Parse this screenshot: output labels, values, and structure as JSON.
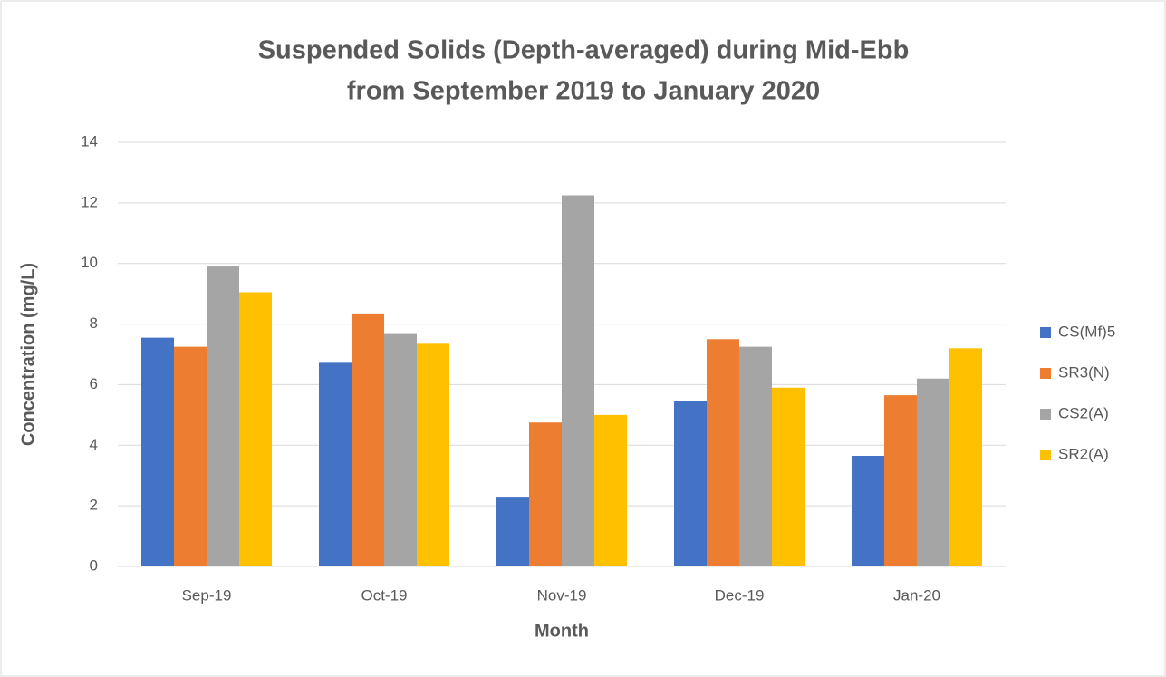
{
  "chart_data": {
    "type": "bar",
    "title": [
      "Suspended Solids (Depth-averaged) during Mid-Ebb",
      "from September 2019 to January 2020"
    ],
    "xlabel": "Month",
    "ylabel": "Concentration (mg/L)",
    "categories": [
      "Sep-19",
      "Oct-19",
      "Nov-19",
      "Dec-19",
      "Jan-20"
    ],
    "series": [
      {
        "name": "CS(Mf)5",
        "color": "#4472c4",
        "values": [
          7.55,
          6.75,
          2.3,
          5.45,
          3.65
        ]
      },
      {
        "name": "SR3(N)",
        "color": "#ed7d31",
        "values": [
          7.25,
          8.35,
          4.75,
          7.5,
          5.65
        ]
      },
      {
        "name": "CS2(A)",
        "color": "#a5a5a5",
        "values": [
          9.9,
          7.7,
          12.25,
          7.25,
          6.2
        ]
      },
      {
        "name": "SR2(A)",
        "color": "#ffc000",
        "values": [
          9.05,
          7.35,
          5.0,
          5.9,
          7.2
        ]
      }
    ],
    "ylim": [
      0,
      14
    ],
    "yticks": [
      0,
      2,
      4,
      6,
      8,
      10,
      12,
      14
    ],
    "grid": true,
    "legend": "right"
  }
}
